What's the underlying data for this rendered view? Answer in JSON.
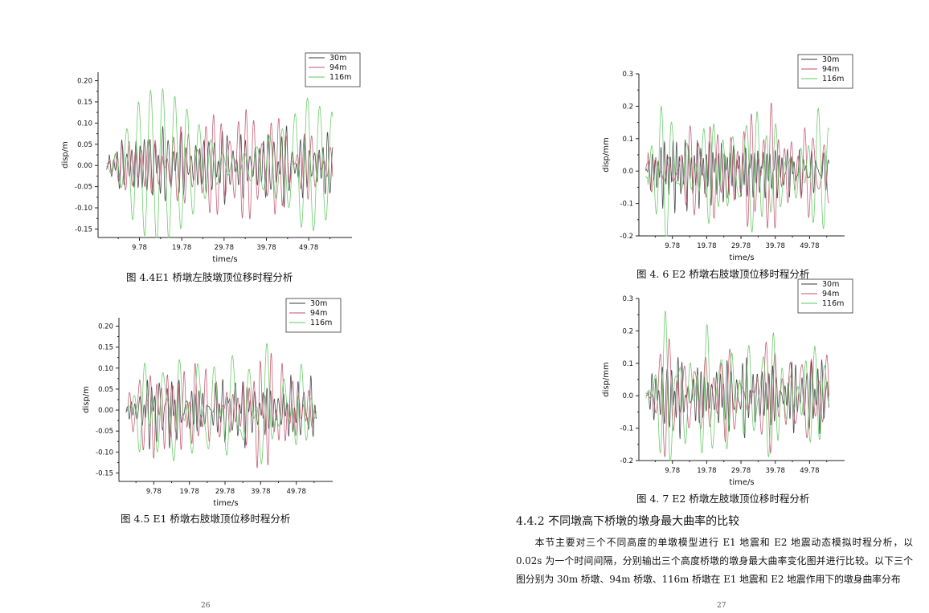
{
  "figures": [
    {
      "id": "fig44",
      "caption": "图 4.4E1 桥墩左肢墩顶位移时程分析"
    },
    {
      "id": "fig45",
      "caption": "图 4.5 E1 桥墩右肢墩顶位移时程分析"
    },
    {
      "id": "fig46",
      "caption": "图 4. 6 E2 桥墩右肢墩顶位移时程分析"
    },
    {
      "id": "fig47",
      "caption": "图 4. 7 E2 桥墩左肢墩顶位移时程分析"
    }
  ],
  "section": {
    "title": "4.4.2 不同墩高下桥墩的墩身最大曲率的比较",
    "paragraph": "本节主要对三个不同高度的单墩模型进行 E1 地震和 E2 地震动态模拟时程分析，以 0.02s 为一个时间间隔，分别输出三个高度桥墩的墩身最大曲率变化图并进行比较。以下三个图分别为 30m 桥墩、94m 桥墩、116m 桥墩在 E1 地震和 E2 地震作用下的墩身曲率分布"
  },
  "page_numbers": {
    "left": "26",
    "right": "27"
  },
  "chart_data": [
    {
      "id": "fig44",
      "type": "line",
      "xlabel": "time/s",
      "ylabel": "disp/m",
      "xticks": [
        9.78,
        19.78,
        29.78,
        39.78,
        49.78
      ],
      "yticks": [
        -0.15,
        -0.1,
        -0.05,
        0.0,
        0.05,
        0.1,
        0.15,
        0.2
      ],
      "ytick_labels": [
        "-0.15",
        "-0.10",
        "-0.05",
        "0.00",
        "0.05",
        "0.10",
        "0.15",
        "0.20"
      ],
      "xlim": [
        0,
        60
      ],
      "ylim": [
        -0.17,
        0.22
      ],
      "legend": "top-right",
      "series": [
        {
          "name": "30m",
          "color": "#3a3a3a",
          "amplitude": 0.1,
          "decay": 0.35,
          "freq": 1.6,
          "seed": 11
        },
        {
          "name": "94m",
          "color": "#c0506a",
          "amplitude": 0.13,
          "decay": 0.75,
          "freq": 0.9,
          "seed": 23
        },
        {
          "name": "116m",
          "color": "#5ec85e",
          "amplitude": 0.17,
          "decay": 0.8,
          "freq": 0.55,
          "seed": 37
        }
      ]
    },
    {
      "id": "fig45",
      "type": "line",
      "xlabel": "time/s",
      "ylabel": "disp/m",
      "xticks": [
        9.78,
        19.78,
        29.78,
        39.78,
        49.78
      ],
      "yticks": [
        -0.15,
        -0.1,
        -0.05,
        0.0,
        0.05,
        0.1,
        0.15,
        0.2
      ],
      "ytick_labels": [
        "-0.15",
        "-0.10",
        "-0.05",
        "0.00",
        "0.05",
        "0.10",
        "0.15",
        "0.20"
      ],
      "xlim": [
        0,
        60
      ],
      "ylim": [
        -0.17,
        0.22
      ],
      "legend": "top-right",
      "series": [
        {
          "name": "30m",
          "color": "#3a3a3a",
          "amplitude": 0.1,
          "decay": 0.35,
          "freq": 1.6,
          "seed": 13
        },
        {
          "name": "94m",
          "color": "#c0506a",
          "amplitude": 0.13,
          "decay": 0.75,
          "freq": 0.9,
          "seed": 29
        },
        {
          "name": "116m",
          "color": "#5ec85e",
          "amplitude": 0.17,
          "decay": 0.8,
          "freq": 0.55,
          "seed": 41
        }
      ]
    },
    {
      "id": "fig46",
      "type": "line",
      "xlabel": "time/s",
      "ylabel": "disp/mm",
      "xticks": [
        9.78,
        19.78,
        29.78,
        39.78,
        49.78
      ],
      "yticks": [
        -0.2,
        -0.1,
        0.0,
        0.1,
        0.2,
        0.3
      ],
      "ytick_labels": [
        "-0.2",
        "-0.1",
        "0.0",
        "0.1",
        "0.2",
        "0.3"
      ],
      "xlim": [
        0,
        60
      ],
      "ylim": [
        -0.2,
        0.3
      ],
      "legend": "top-right",
      "series": [
        {
          "name": "30m",
          "color": "#3a3a3a",
          "amplitude": 0.12,
          "decay": 0.3,
          "freq": 1.6,
          "seed": 17
        },
        {
          "name": "94m",
          "color": "#c0506a",
          "amplitude": 0.17,
          "decay": 0.6,
          "freq": 0.9,
          "seed": 31
        },
        {
          "name": "116m",
          "color": "#5ec85e",
          "amplitude": 0.22,
          "decay": 0.7,
          "freq": 0.55,
          "seed": 43
        }
      ]
    },
    {
      "id": "fig47",
      "type": "line",
      "xlabel": "time/s",
      "ylabel": "disp/mm",
      "xticks": [
        9.78,
        19.78,
        29.78,
        39.78,
        49.78
      ],
      "yticks": [
        -0.2,
        -0.1,
        0.0,
        0.1,
        0.2,
        0.3
      ],
      "ytick_labels": [
        "-0.2",
        "-0.1",
        "0.0",
        "0.1",
        "0.2",
        "0.3"
      ],
      "xlim": [
        0,
        60
      ],
      "ylim": [
        -0.2,
        0.3
      ],
      "legend": "top-right",
      "series": [
        {
          "name": "30m",
          "color": "#3a3a3a",
          "amplitude": 0.12,
          "decay": 0.3,
          "freq": 1.6,
          "seed": 19
        },
        {
          "name": "94m",
          "color": "#c0506a",
          "amplitude": 0.17,
          "decay": 0.6,
          "freq": 0.9,
          "seed": 33
        },
        {
          "name": "116m",
          "color": "#5ec85e",
          "amplitude": 0.22,
          "decay": 0.7,
          "freq": 0.55,
          "seed": 47
        }
      ]
    }
  ]
}
